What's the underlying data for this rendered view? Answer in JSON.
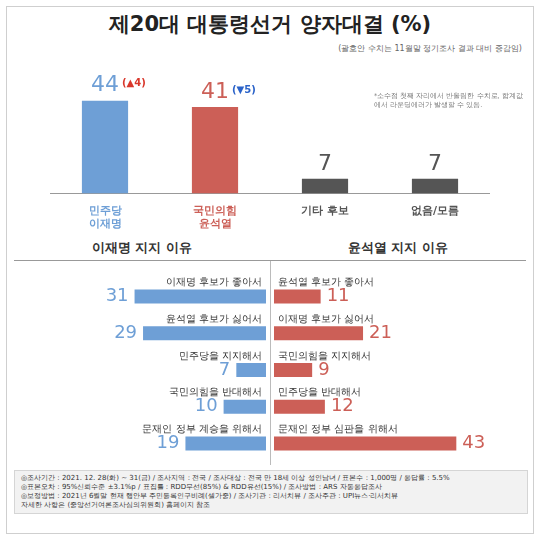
{
  "title": "제20대 대통령선거 양자대결 (%)",
  "note": "(괄호안 수치는 11월말 정기조사 결과 대비 증감임)",
  "footer": [
    "◎조사기간 : 2021. 12. 28(화) ~ 31(금) / 조사지역 : 전국 / 조사대상 : 전국 만 18세 이상 성인남녀 / 표본수 : 1,000명 / 응답률 : 5.5%",
    "◎표본오차 : 95%신뢰수준 ±3.1%p / 표집틀 : RDD무선(85%) & RDD유선(15%) / 조사방법 : ARS 자동응답조사",
    "◎보정방법 : 2021년 6월말 현재 행안부 주민등록인구비례(셀가중) / 조사기관 : 리서치뷰 / 조사주관 : UPI뉴스·리서치뷰",
    "자세한 사항은 (중앙선거여론조사심의위원회) 홈페이지 참조"
  ],
  "chart_data": [
    {
      "type": "bar",
      "categories": [
        "민주당\n이재명",
        "국민의힘\n윤석열",
        "기타 후보",
        "없음/모름"
      ],
      "values": [
        44,
        41,
        7,
        7
      ],
      "colors": [
        "#6e9fd6",
        "#cc5f57",
        "#555555",
        "#555555"
      ],
      "ylim": [
        0,
        50
      ],
      "grid": false,
      "tick_labels": "x",
      "data_labels": true,
      "annotations": [
        {
          "category": "민주당\n이재명",
          "text": "(▲4)"
        },
        {
          "category": "국민의힘\n윤석열",
          "text": "(▼5)"
        }
      ],
      "footnote": "*소수점 첫째 자리에서 반올림한 수치로, 합계값에서 라운딩에러가 발생할 수 있음."
    },
    {
      "type": "bar",
      "orientation": "horizontal",
      "title": "이재명 지지 이유",
      "categories": [
        "이재명 후보가 좋아서",
        "윤석열 후보가 싫어서",
        "민주당을 지지해서",
        "국민의힘을 반대해서",
        "문재인 정부 계승을 위해서"
      ],
      "values": [
        31,
        29,
        7,
        10,
        19
      ],
      "color": "#6e9fd6",
      "xlim": [
        50,
        0
      ],
      "grid": false,
      "tick_labels": false,
      "data_labels": true
    },
    {
      "type": "bar",
      "orientation": "horizontal",
      "title": "윤석열 지지 이유",
      "categories": [
        "윤석열 후보가 좋아서",
        "이재명 후보가 싫어서",
        "국민의힘을 지지해서",
        "민주당을 반대해서",
        "문재인 정부 심판을 위해서"
      ],
      "values": [
        11,
        21,
        9,
        12,
        43
      ],
      "color": "#cc5f57",
      "xlim": [
        0,
        50
      ],
      "grid": false,
      "tick_labels": false,
      "data_labels": true
    }
  ]
}
